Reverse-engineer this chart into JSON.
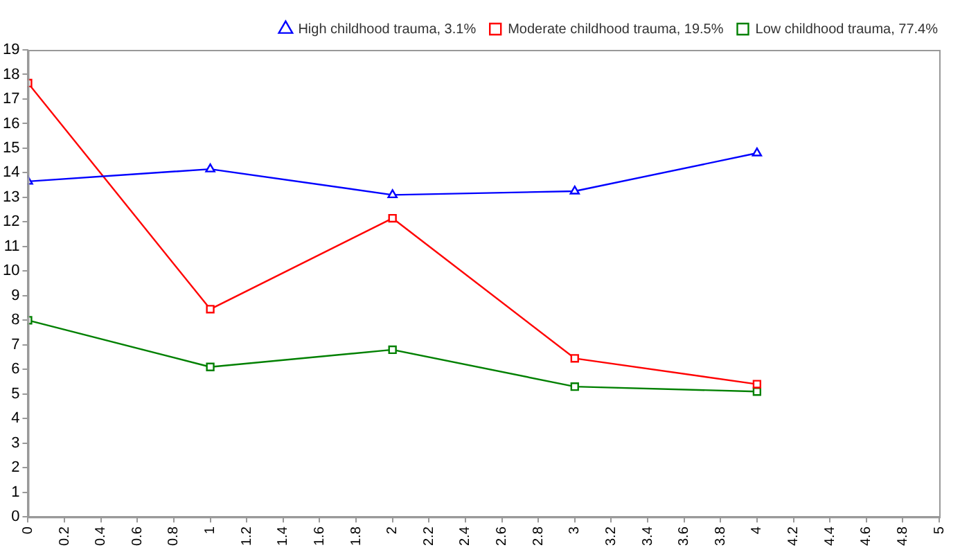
{
  "chart_data": {
    "type": "line",
    "x": [
      0,
      1,
      2,
      3,
      4
    ],
    "series": [
      {
        "name": "High childhood trauma, 3.1%",
        "color": "#0000ff",
        "marker": "triangle",
        "values": [
          13.65,
          14.15,
          13.1,
          13.25,
          14.8
        ]
      },
      {
        "name": "Moderate childhood trauma, 19.5%",
        "color": "#ff0000",
        "marker": "square",
        "values": [
          17.65,
          8.45,
          12.15,
          6.45,
          5.4
        ]
      },
      {
        "name": "Low childhood trauma, 77.4%",
        "color": "#008000",
        "marker": "square",
        "values": [
          8.0,
          6.1,
          6.8,
          5.3,
          5.1
        ]
      }
    ],
    "xlim": [
      0,
      5
    ],
    "xticks": [
      0,
      0.2,
      0.4,
      0.6,
      0.8,
      1,
      1.2,
      1.4,
      1.6,
      1.8,
      2,
      2.2,
      2.4,
      2.6,
      2.8,
      3,
      3.2,
      3.4,
      3.6,
      3.8,
      4,
      4.2,
      4.4,
      4.6,
      4.8,
      5
    ],
    "ylim": [
      0,
      19
    ],
    "yticks": [
      0,
      1,
      2,
      3,
      4,
      5,
      6,
      7,
      8,
      9,
      10,
      11,
      12,
      13,
      14,
      15,
      16,
      17,
      18,
      19
    ],
    "grid": false,
    "legend": "top right",
    "line_style": "solid"
  }
}
